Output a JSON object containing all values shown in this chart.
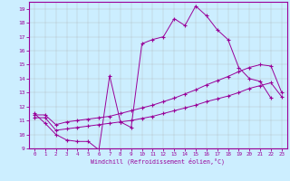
{
  "xlabel": "Windchill (Refroidissement éolien,°C)",
  "background_color": "#cceeff",
  "line_color": "#990099",
  "xlim": [
    -0.5,
    23.5
  ],
  "ylim": [
    9,
    19.5
  ],
  "xticks": [
    0,
    1,
    2,
    3,
    4,
    5,
    6,
    7,
    8,
    9,
    10,
    11,
    12,
    13,
    14,
    15,
    16,
    17,
    18,
    19,
    20,
    21,
    22,
    23
  ],
  "yticks": [
    9,
    10,
    11,
    12,
    13,
    14,
    15,
    16,
    17,
    18,
    19
  ],
  "series1_x": [
    0,
    1,
    2,
    3,
    4,
    5,
    6,
    7,
    8,
    9,
    10,
    11,
    12,
    13,
    14,
    15,
    16,
    17,
    18,
    19,
    20,
    21,
    22
  ],
  "series1_y": [
    11.5,
    10.8,
    10.0,
    9.6,
    9.5,
    9.5,
    8.9,
    14.2,
    10.9,
    10.5,
    16.5,
    16.8,
    17.0,
    18.3,
    17.8,
    19.2,
    18.5,
    17.5,
    16.8,
    14.8,
    14.0,
    13.8,
    12.6
  ],
  "series2_x": [
    0,
    1,
    2,
    3,
    4,
    5,
    6,
    7,
    8,
    9,
    10,
    11,
    12,
    13,
    14,
    15,
    16,
    17,
    18,
    19,
    20,
    21,
    22,
    23
  ],
  "series2_y": [
    11.2,
    11.2,
    10.3,
    10.4,
    10.5,
    10.6,
    10.7,
    10.8,
    10.9,
    11.0,
    11.15,
    11.3,
    11.5,
    11.7,
    11.9,
    12.1,
    12.35,
    12.55,
    12.75,
    13.0,
    13.3,
    13.5,
    13.7,
    12.7
  ],
  "series3_x": [
    0,
    1,
    2,
    3,
    4,
    5,
    6,
    7,
    8,
    9,
    10,
    11,
    12,
    13,
    14,
    15,
    16,
    17,
    18,
    19,
    20,
    21,
    22,
    23
  ],
  "series3_y": [
    11.4,
    11.4,
    10.7,
    10.9,
    11.0,
    11.1,
    11.2,
    11.3,
    11.5,
    11.7,
    11.9,
    12.1,
    12.35,
    12.6,
    12.9,
    13.2,
    13.55,
    13.85,
    14.15,
    14.5,
    14.8,
    15.0,
    14.9,
    13.0
  ]
}
